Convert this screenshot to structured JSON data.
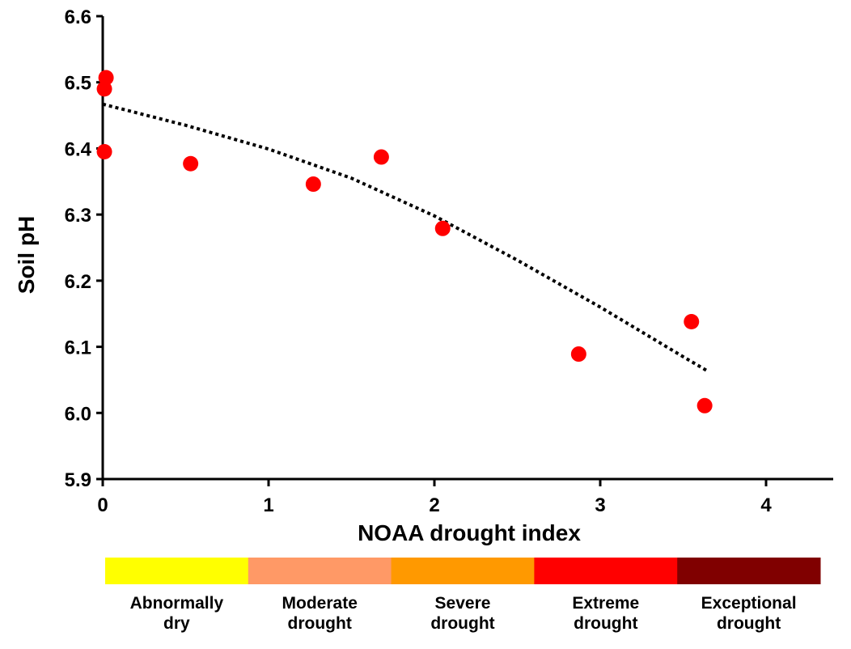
{
  "chart_data": {
    "type": "scatter",
    "title": "",
    "xlabel": "NOAA drought index",
    "ylabel": "Soil pH",
    "xlim": [
      0,
      4.4
    ],
    "ylim": [
      5.9,
      6.6
    ],
    "x_ticks": [
      "0",
      "1",
      "2",
      "3",
      "4"
    ],
    "y_ticks": [
      "5.9",
      "6.0",
      "6.1",
      "6.2",
      "6.3",
      "6.4",
      "6.5",
      "6.6"
    ],
    "grid": false,
    "series": [
      {
        "type": "scatter",
        "color": "#ff0000",
        "points": [
          {
            "x": 0.01,
            "y": 6.395
          },
          {
            "x": 0.01,
            "y": 6.49
          },
          {
            "x": 0.02,
            "y": 6.507
          },
          {
            "x": 0.53,
            "y": 6.377
          },
          {
            "x": 1.27,
            "y": 6.346
          },
          {
            "x": 1.68,
            "y": 6.387
          },
          {
            "x": 2.05,
            "y": 6.279
          },
          {
            "x": 2.87,
            "y": 6.089
          },
          {
            "x": 3.55,
            "y": 6.138
          },
          {
            "x": 3.63,
            "y": 6.011
          }
        ]
      },
      {
        "type": "trendline",
        "style": "dotted",
        "color": "#000000",
        "x": [
          0,
          0.5,
          1,
          1.5,
          2,
          2.5,
          3,
          3.5,
          3.65
        ],
        "y": [
          6.467,
          6.435,
          6.399,
          6.355,
          6.298,
          6.231,
          6.16,
          6.085,
          6.063
        ]
      }
    ],
    "legend": [
      {
        "label": "Abnormally dry",
        "line1": "Abnormally",
        "line2": "dry",
        "color": "#ffff00"
      },
      {
        "label": "Moderate drought",
        "line1": "Moderate",
        "line2": "drought",
        "color": "#ff9966"
      },
      {
        "label": "Severe drought",
        "line1": "Severe",
        "line2": "drought",
        "color": "#ff9900"
      },
      {
        "label": "Extreme drought",
        "line1": "Extreme",
        "line2": "drought",
        "color": "#ff0000"
      },
      {
        "label": "Exceptional drought",
        "line1": "Exceptional",
        "line2": "drought",
        "color": "#800000"
      }
    ],
    "legend_placement": "bottom"
  }
}
